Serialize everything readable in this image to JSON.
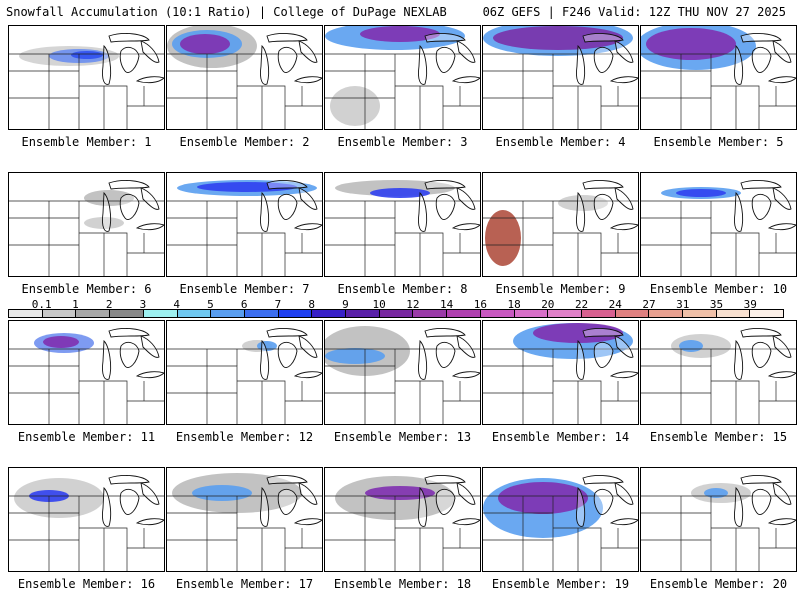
{
  "header": {
    "left_title": "Snowfall Accumulation (10:1 Ratio) | College of DuPage NEXLAB",
    "right_title": "06Z GEFS | F246 Valid: 12Z THU NOV 27 2025"
  },
  "legend": {
    "labels": [
      "0.1",
      "1",
      "2",
      "3",
      "4",
      "5",
      "6",
      "7",
      "8",
      "9",
      "10",
      "12",
      "14",
      "16",
      "18",
      "20",
      "22",
      "24",
      "27",
      "31",
      "35",
      "39"
    ],
    "colors": [
      "#e8e8e8",
      "#c8c8c8",
      "#a8a8a8",
      "#888888",
      "#9ef0f0",
      "#70c8f0",
      "#5a9ef0",
      "#3c6ef0",
      "#2040f0",
      "#3820c8",
      "#5a20a8",
      "#7828a0",
      "#9a3aa8",
      "#b040b0",
      "#c858c0",
      "#d870c8",
      "#e080c8",
      "#d86090",
      "#e08080",
      "#e8a090",
      "#f0c0a8",
      "#f8e0d0",
      "#fcf0e8"
    ]
  },
  "panels": [
    {
      "label": "Ensemble Member: 1"
    },
    {
      "label": "Ensemble Member: 2"
    },
    {
      "label": "Ensemble Member: 3"
    },
    {
      "label": "Ensemble Member: 4"
    },
    {
      "label": "Ensemble Member: 5"
    },
    {
      "label": "Ensemble Member: 6"
    },
    {
      "label": "Ensemble Member: 7"
    },
    {
      "label": "Ensemble Member: 8"
    },
    {
      "label": "Ensemble Member: 9"
    },
    {
      "label": "Ensemble Member: 10"
    },
    {
      "label": "Ensemble Member: 11"
    },
    {
      "label": "Ensemble Member: 12"
    },
    {
      "label": "Ensemble Member: 13"
    },
    {
      "label": "Ensemble Member: 14"
    },
    {
      "label": "Ensemble Member: 15"
    },
    {
      "label": "Ensemble Member: 16"
    },
    {
      "label": "Ensemble Member: 17"
    },
    {
      "label": "Ensemble Member: 18"
    },
    {
      "label": "Ensemble Member: 19"
    },
    {
      "label": "Ensemble Member: 20"
    }
  ]
}
